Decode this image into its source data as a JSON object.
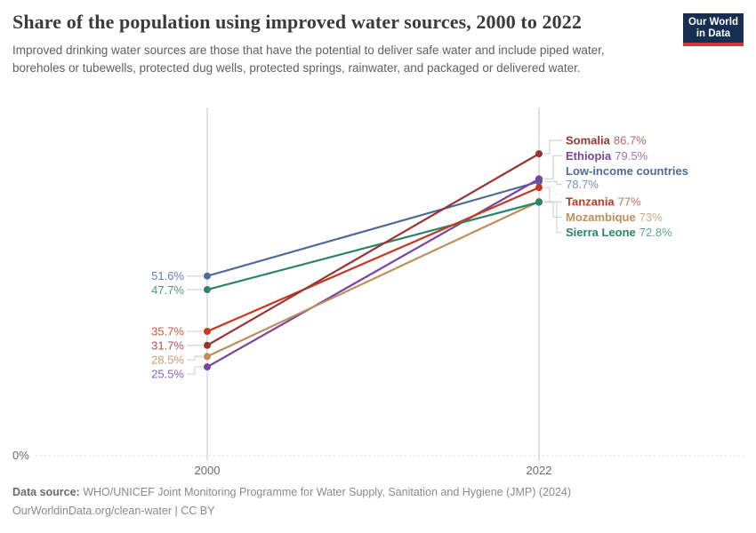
{
  "header": {
    "title": "Share of the population using improved water sources, 2000 to 2022",
    "subtitle": "Improved drinking water sources are those that have the potential to deliver safe water and include piped water, boreholes or tubewells, protected dug wells, protected springs, rainwater, and packaged or delivered water.",
    "logo": {
      "line1": "Our World",
      "line2": "in Data",
      "bg": "#152E51",
      "accent": "#D7353A"
    }
  },
  "footer": {
    "source_label": "Data source:",
    "source_text": " WHO/UNICEF Joint Monitoring Programme for Water Supply, Sanitation and Hygiene (JMP) (2024)",
    "note": "OurWorldinData.org/clean-water | CC BY"
  },
  "chart_data": {
    "type": "line",
    "variant": "slope",
    "title": "Share of the population using improved water sources, 2000 to 2022",
    "x": [
      2000,
      2022
    ],
    "x_tick_labels": [
      "2000",
      "2022"
    ],
    "ylim": [
      0,
      100
    ],
    "y_unit": "%",
    "y_zero_label": "0%",
    "grid": false,
    "legend_position": "right-labels",
    "series": [
      {
        "name": "Somalia",
        "values": [
          31.7,
          86.7
        ],
        "color": "#9A3433",
        "left_label": "31.7%",
        "right_label": "86.7%"
      },
      {
        "name": "Ethiopia",
        "values": [
          25.5,
          79.5
        ],
        "color": "#7A44A5",
        "left_label": "25.5%",
        "right_label": "79.5%"
      },
      {
        "name": "Low-income countries",
        "values": [
          51.6,
          78.7
        ],
        "color": "#4C6A9C",
        "left_label": "51.6%",
        "right_label": "78.7%"
      },
      {
        "name": "Tanzania",
        "values": [
          35.7,
          77.0
        ],
        "color": "#C53A1F",
        "left_label": "35.7%",
        "right_label": "77%"
      },
      {
        "name": "Mozambique",
        "values": [
          28.5,
          73.0
        ],
        "color": "#BC8E5A",
        "left_label": "28.5%",
        "right_label": "73%"
      },
      {
        "name": "Sierra Leone",
        "values": [
          47.7,
          72.8
        ],
        "color": "#2C8465",
        "left_label": "47.7%",
        "right_label": "72.8%"
      }
    ]
  }
}
